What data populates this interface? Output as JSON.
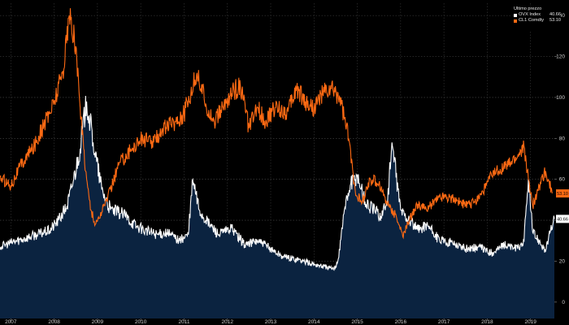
{
  "chart_data": {
    "type": "line",
    "title": "",
    "legend": {
      "title": "Ultimo prezzo",
      "placement": "top-right"
    },
    "x_ticks": [
      "2007",
      "2008",
      "2009",
      "2010",
      "2011",
      "2012",
      "2013",
      "2014",
      "2015",
      "2016",
      "2017",
      "2018",
      "2019"
    ],
    "y_ticks": [
      "140",
      "120",
      "100",
      "80",
      "60",
      "40",
      "20",
      "0"
    ],
    "ylim": [
      -8,
      146
    ],
    "xlim": [
      2006.75,
      2019.55
    ],
    "grid": true,
    "series": [
      {
        "name": "OVX Index",
        "last_value": "40.66",
        "color": "#ffffff",
        "fill": "#0b2340",
        "x": [
          2006.75,
          2007.0,
          2007.3,
          2007.6,
          2007.9,
          2008.1,
          2008.3,
          2008.45,
          2008.6,
          2008.75,
          2008.9,
          2009.1,
          2009.3,
          2009.6,
          2009.9,
          2010.1,
          2010.4,
          2010.6,
          2010.9,
          2011.1,
          2011.2,
          2011.35,
          2011.5,
          2011.8,
          2012.1,
          2012.4,
          2012.7,
          2013.0,
          2013.3,
          2013.6,
          2013.9,
          2014.1,
          2014.3,
          2014.45,
          2014.55,
          2014.7,
          2014.85,
          2015.0,
          2015.2,
          2015.4,
          2015.55,
          2015.7,
          2015.8,
          2016.0,
          2016.2,
          2016.4,
          2016.6,
          2016.9,
          2017.2,
          2017.5,
          2017.8,
          2018.1,
          2018.4,
          2018.7,
          2018.85,
          2018.95,
          2019.05,
          2019.2,
          2019.35,
          2019.45,
          2019.55
        ],
        "y": [
          27,
          29,
          31,
          33,
          35,
          40,
          47,
          60,
          75,
          98,
          78,
          55,
          45,
          43,
          37,
          35,
          33,
          34,
          30,
          33,
          60,
          45,
          40,
          33,
          36,
          28,
          30,
          26,
          22,
          21,
          19,
          18,
          17,
          16,
          20,
          45,
          58,
          62,
          48,
          45,
          42,
          50,
          78,
          45,
          40,
          35,
          38,
          30,
          29,
          26,
          27,
          24,
          28,
          26,
          30,
          60,
          34,
          30,
          25,
          34,
          40.66
        ]
      },
      {
        "name": "CL1 Comdty",
        "last_value": "53.10",
        "color": "#ff6a13",
        "x": [
          2006.75,
          2007.0,
          2007.2,
          2007.5,
          2007.8,
          2008.0,
          2008.2,
          2008.35,
          2008.5,
          2008.6,
          2008.75,
          2008.85,
          2008.95,
          2009.1,
          2009.3,
          2009.5,
          2009.8,
          2010.0,
          2010.3,
          2010.5,
          2010.8,
          2011.0,
          2011.3,
          2011.5,
          2011.7,
          2011.9,
          2012.1,
          2012.3,
          2012.5,
          2012.7,
          2012.9,
          2013.1,
          2013.4,
          2013.6,
          2013.8,
          2014.0,
          2014.2,
          2014.4,
          2014.6,
          2014.8,
          2014.95,
          2015.1,
          2015.3,
          2015.5,
          2015.7,
          2015.9,
          2016.05,
          2016.2,
          2016.4,
          2016.6,
          2016.8,
          2017.0,
          2017.3,
          2017.5,
          2017.7,
          2017.9,
          2018.1,
          2018.3,
          2018.5,
          2018.7,
          2018.85,
          2018.95,
          2019.05,
          2019.2,
          2019.35,
          2019.5
        ],
        "y": [
          61,
          57,
          66,
          75,
          88,
          98,
          113,
          140,
          125,
          95,
          60,
          45,
          38,
          44,
          55,
          68,
          75,
          80,
          78,
          85,
          88,
          92,
          112,
          97,
          88,
          95,
          102,
          106,
          85,
          95,
          88,
          95,
          93,
          105,
          98,
          95,
          102,
          104,
          100,
          80,
          55,
          48,
          60,
          58,
          48,
          42,
          32,
          40,
          48,
          45,
          50,
          52,
          50,
          47,
          49,
          54,
          62,
          65,
          67,
          71,
          76,
          60,
          47,
          57,
          64,
          53.1
        ]
      }
    ]
  }
}
